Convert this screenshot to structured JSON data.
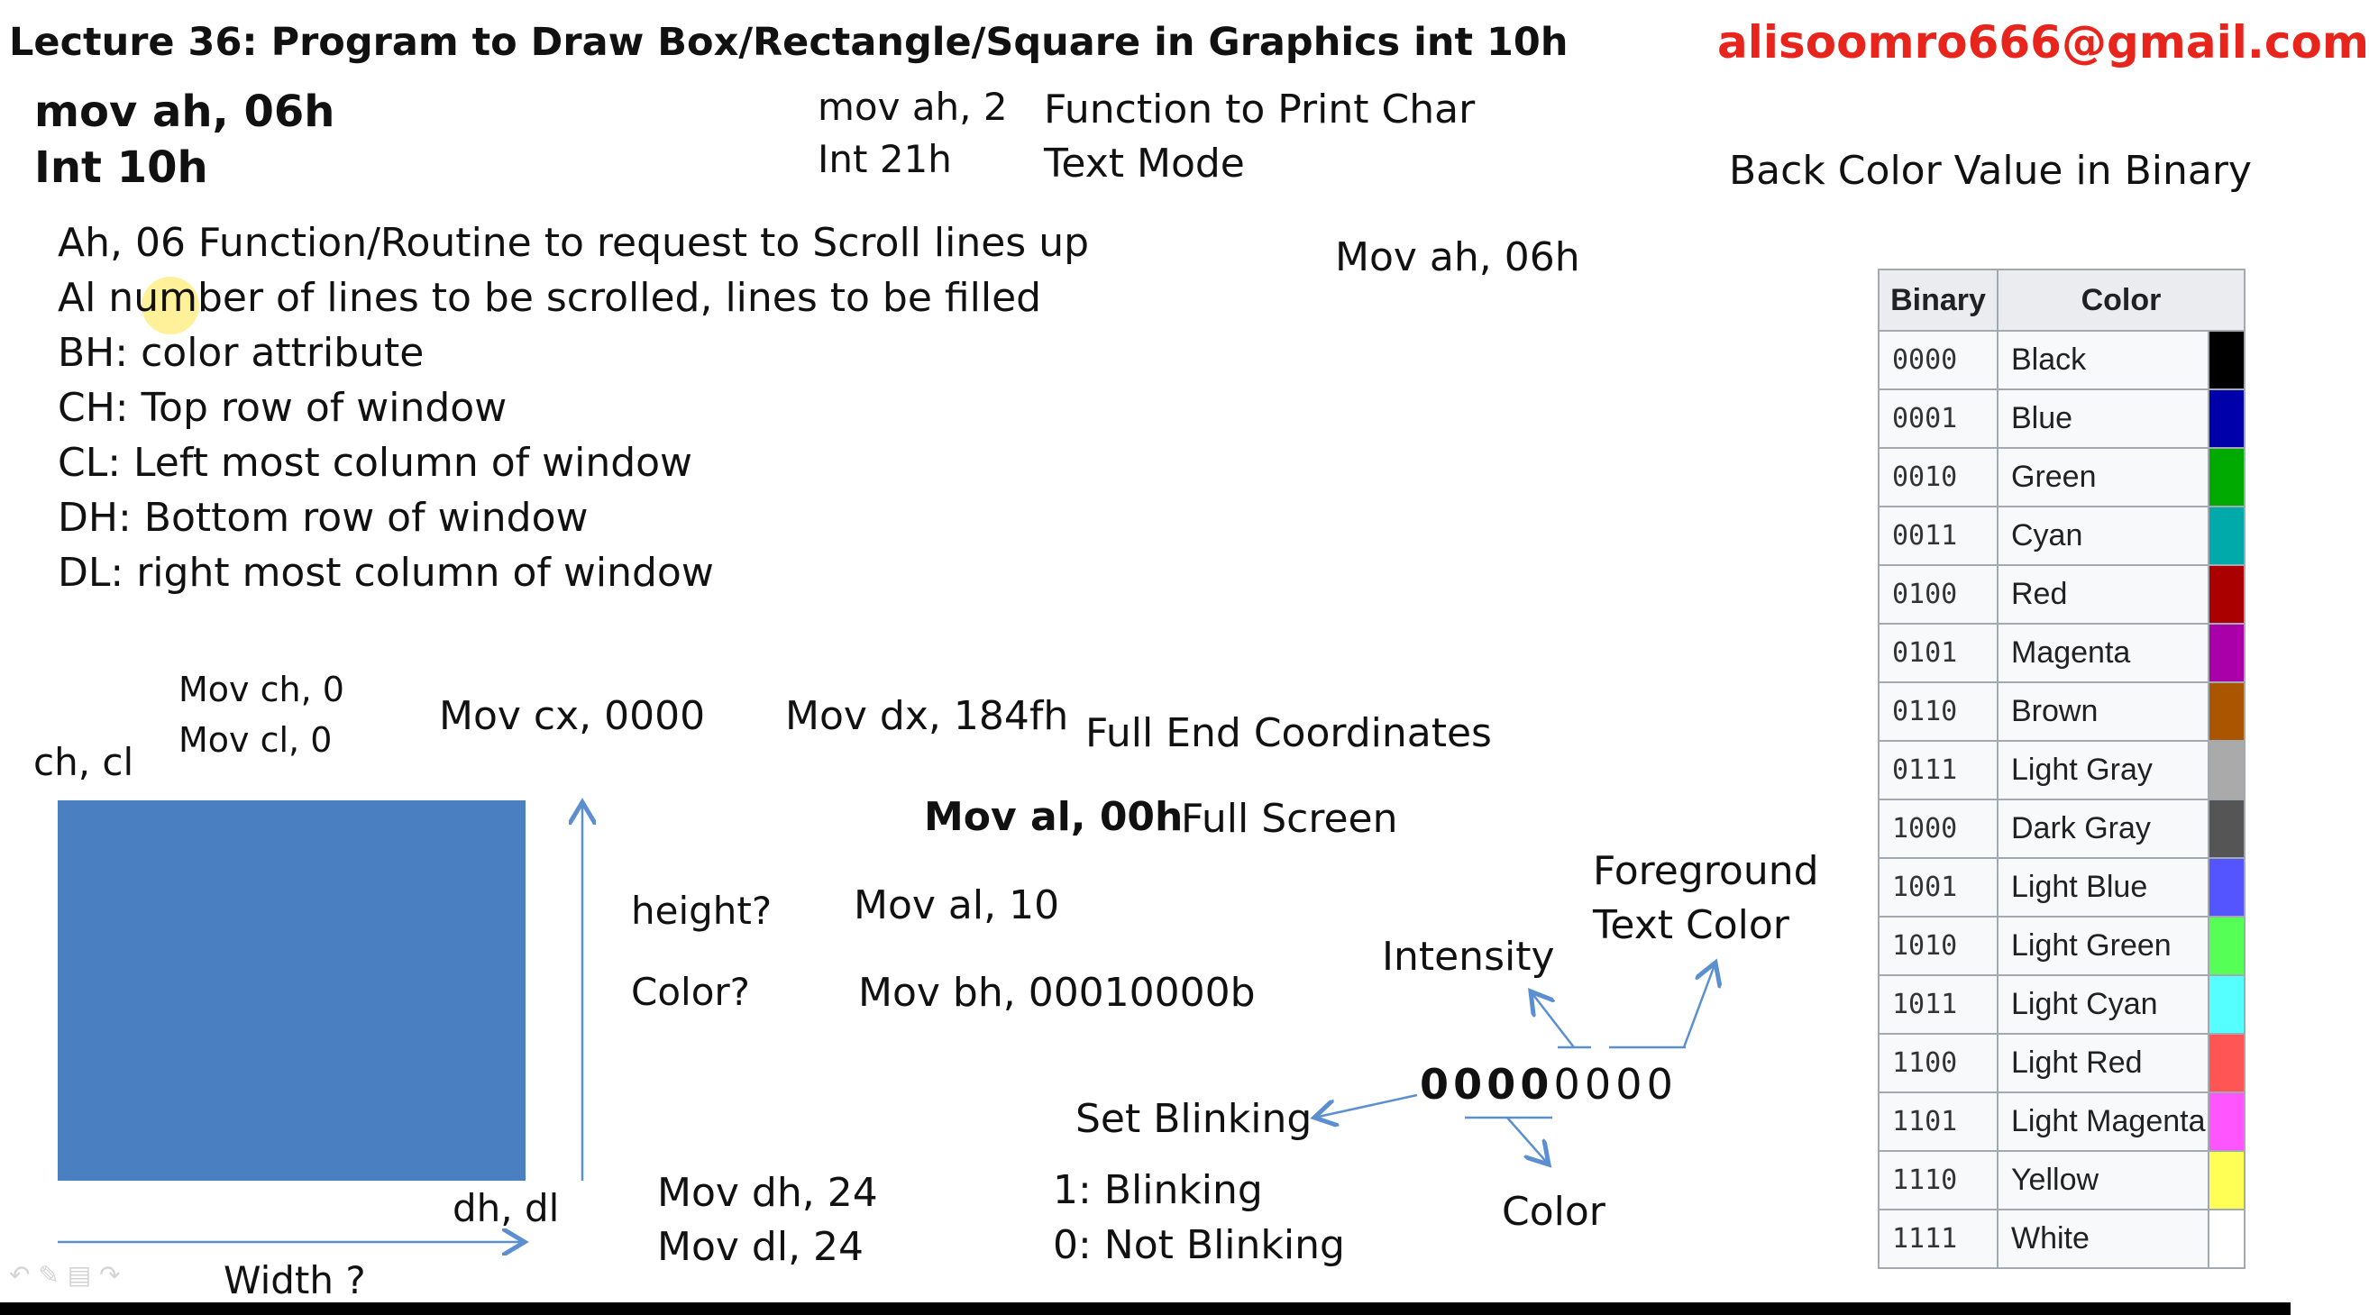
{
  "header": {
    "title": "Lecture 36: Program to Draw Box/Rectangle/Square in Graphics int 10h",
    "email": "alisoomro666@gmail.com"
  },
  "left_code": {
    "line1": "mov ah, 06h",
    "line2": "Int 10h"
  },
  "middle_code": {
    "line1": "mov ah, 2",
    "line2": "Int 21h"
  },
  "middle_desc": {
    "line1": "Function to Print Char",
    "line2": "Text Mode"
  },
  "back_color_heading": "Back Color Value in Binary",
  "mov_ah_right": "Mov ah, 06h",
  "registers": [
    "Ah, 06 Function/Routine to request to Scroll lines up",
    "Al number of lines to be scrolled, lines to be filled",
    "BH: color attribute",
    "CH: Top row of window",
    "CL: Left most column of window",
    "DH: Bottom row of window",
    "DL: right most column of window"
  ],
  "diagram": {
    "mov_ch": "Mov ch, 0",
    "mov_cl": "Mov cl,  0",
    "ch_cl": "ch, cl",
    "mov_cx": "Mov cx, 0000",
    "mov_dx": "Mov dx, 184fh",
    "full_end": "Full End Coordinates",
    "mov_al_00": "Mov al, 00h",
    "full_screen": "Full Screen",
    "height_q": "height?",
    "mov_al_10": "Mov al, 10",
    "color_q": "Color?",
    "mov_bh": "Mov bh, 00010000b",
    "dh_dl": "dh, dl",
    "width_q": "Width ?",
    "mov_dh": "Mov dh, 24",
    "mov_dl": "Mov dl,  24",
    "blinking_1": "1: Blinking",
    "blinking_0": "0: Not Blinking",
    "set_blinking": "Set Blinking",
    "intensity": "Intensity",
    "foreground1": "Foreground",
    "foreground2": "Text Color",
    "color_label": "Color",
    "bits_bold": [
      "0",
      "0",
      "0",
      "0"
    ],
    "bits_normal": [
      "0",
      "0",
      "0",
      "0"
    ],
    "box_color": "#4a7fc1"
  },
  "color_table": {
    "headers": [
      "Binary",
      "Color"
    ],
    "rows": [
      {
        "binary": "0000",
        "name": "Black",
        "swatch": "#000000"
      },
      {
        "binary": "0001",
        "name": "Blue",
        "swatch": "#0000aa"
      },
      {
        "binary": "0010",
        "name": "Green",
        "swatch": "#00aa00"
      },
      {
        "binary": "0011",
        "name": "Cyan",
        "swatch": "#00aaaa"
      },
      {
        "binary": "0100",
        "name": "Red",
        "swatch": "#aa0000"
      },
      {
        "binary": "0101",
        "name": "Magenta",
        "swatch": "#aa00aa"
      },
      {
        "binary": "0110",
        "name": "Brown",
        "swatch": "#aa5500"
      },
      {
        "binary": "0111",
        "name": "Light Gray",
        "swatch": "#aaaaaa"
      },
      {
        "binary": "1000",
        "name": "Dark Gray",
        "swatch": "#555555"
      },
      {
        "binary": "1001",
        "name": "Light Blue",
        "swatch": "#5555ff"
      },
      {
        "binary": "1010",
        "name": "Light Green",
        "swatch": "#55ff55"
      },
      {
        "binary": "1011",
        "name": "Light Cyan",
        "swatch": "#55ffff"
      },
      {
        "binary": "1100",
        "name": "Light Red",
        "swatch": "#ff5555"
      },
      {
        "binary": "1101",
        "name": "Light Magenta",
        "swatch": "#ff55ff"
      },
      {
        "binary": "1110",
        "name": "Yellow",
        "swatch": "#ffff55"
      },
      {
        "binary": "1111",
        "name": "White",
        "swatch": "#ffffff"
      }
    ]
  }
}
